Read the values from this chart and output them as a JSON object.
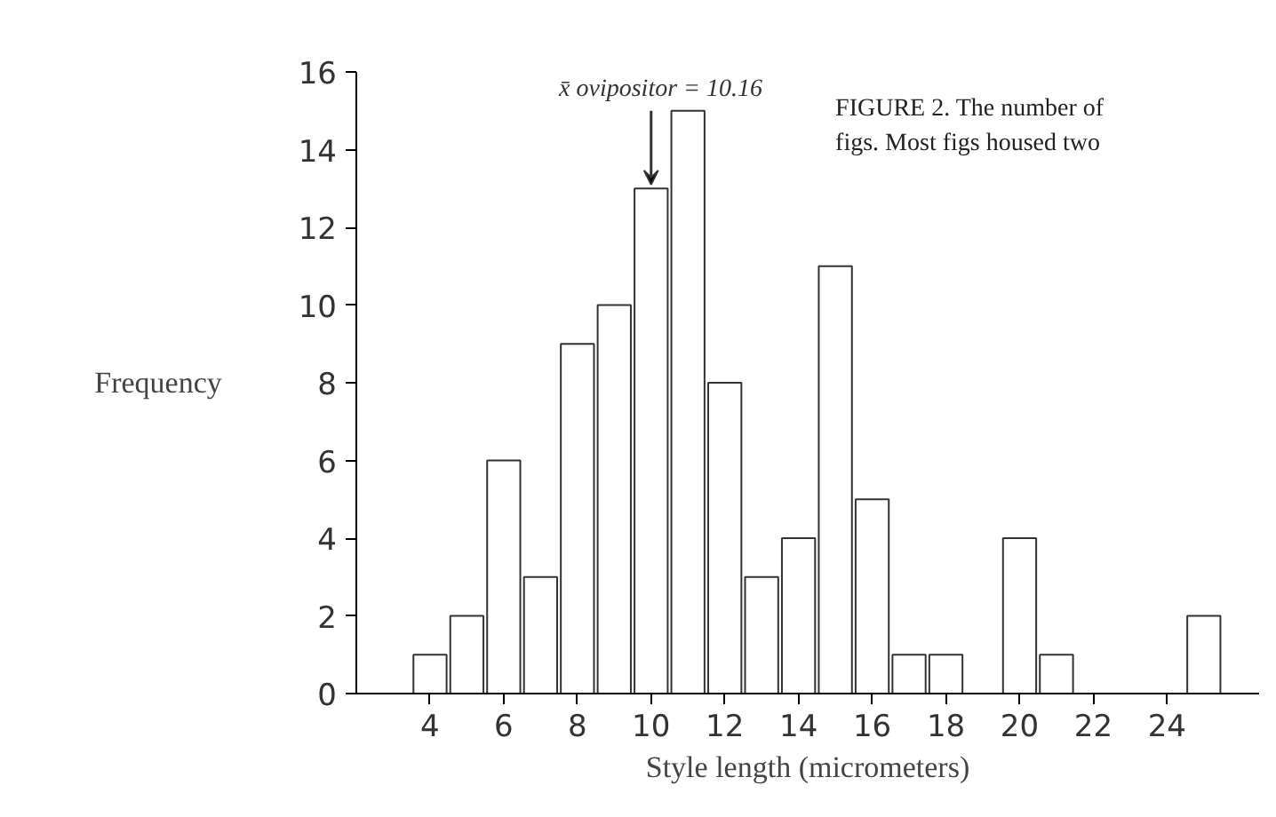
{
  "chart_data": {
    "type": "histogram",
    "xlabel": "Style length (micrometers)",
    "ylabel": "Frequency",
    "bins": [
      3.5,
      4.5,
      5.5,
      6.5,
      7.5,
      8.5,
      9.5,
      10.5,
      11.5,
      12.5,
      13.5,
      14.5,
      15.5,
      16.5,
      17.5,
      18.5,
      19.5,
      20.5,
      21.5,
      22.5,
      23.5,
      24.5,
      25.5
    ],
    "values": [
      1,
      2,
      6,
      3,
      9,
      10,
      13,
      15,
      8,
      3,
      4,
      11,
      5,
      1,
      1,
      0,
      4,
      1,
      0,
      0,
      0,
      2
    ],
    "color": "#ffffff",
    "xlim": [
      2,
      26.5
    ],
    "ylim": [
      0,
      16
    ],
    "xticks": [
      4,
      6,
      8,
      10,
      12,
      14,
      16,
      18,
      20,
      22,
      24
    ],
    "yticks": [
      0,
      2,
      4,
      6,
      8,
      10,
      12,
      14,
      16
    ],
    "grid": false,
    "annotations": [
      {
        "text": "x̄ ovipositor = 10.16",
        "x": 10,
        "y": 13
      },
      "FIGURE 2. The number of",
      "figs. Most figs housed two"
    ]
  }
}
